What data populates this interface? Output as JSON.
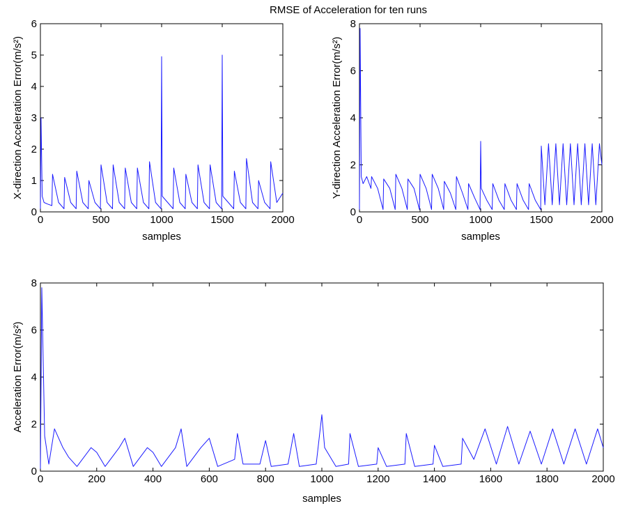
{
  "figure": {
    "title": "RMSE of Acceleration for ten runs"
  },
  "colors": {
    "trace": "#1a1aff",
    "axis": "#000000"
  },
  "chart_data": [
    {
      "id": "x_error",
      "type": "line",
      "xlabel": "samples",
      "ylabel": "X-direction Acceleration Error(m/s²)",
      "xlim": [
        0,
        2000
      ],
      "ylim": [
        0,
        6
      ],
      "xticks": [
        0,
        500,
        1000,
        1500,
        2000
      ],
      "yticks": [
        0,
        1,
        2,
        3,
        4,
        5,
        6
      ],
      "x": [
        0,
        5,
        15,
        30,
        60,
        95,
        100,
        150,
        195,
        200,
        250,
        295,
        300,
        350,
        395,
        400,
        450,
        495,
        500,
        550,
        595,
        600,
        650,
        695,
        700,
        750,
        795,
        800,
        850,
        895,
        900,
        950,
        995,
        1000,
        1005,
        1050,
        1095,
        1100,
        1150,
        1195,
        1200,
        1250,
        1295,
        1300,
        1350,
        1395,
        1400,
        1450,
        1495,
        1500,
        1505,
        1550,
        1595,
        1600,
        1650,
        1695,
        1700,
        1750,
        1795,
        1800,
        1850,
        1895,
        1900,
        1950,
        2000
      ],
      "y": [
        0.1,
        3.0,
        0.5,
        0.3,
        0.25,
        0.2,
        1.2,
        0.3,
        0.1,
        1.1,
        0.3,
        0.1,
        1.3,
        0.3,
        0.1,
        1.0,
        0.3,
        0.1,
        1.5,
        0.3,
        0.1,
        1.5,
        0.3,
        0.1,
        1.4,
        0.3,
        0.1,
        1.4,
        0.3,
        0.1,
        1.6,
        0.3,
        0.1,
        4.95,
        0.5,
        0.3,
        0.1,
        1.4,
        0.3,
        0.1,
        1.2,
        0.3,
        0.1,
        1.5,
        0.3,
        0.1,
        1.5,
        0.3,
        0.1,
        5.0,
        0.5,
        0.3,
        0.1,
        1.3,
        0.3,
        0.1,
        1.7,
        0.3,
        0.1,
        1.0,
        0.3,
        0.1,
        1.6,
        0.3,
        0.6
      ]
    },
    {
      "id": "y_error",
      "type": "line",
      "xlabel": "samples",
      "ylabel": "Y-direction Acceleration Error(m/s²)",
      "xlim": [
        0,
        2000
      ],
      "ylim": [
        0,
        8
      ],
      "xticks": [
        0,
        500,
        1000,
        1500,
        2000
      ],
      "yticks": [
        0,
        2,
        4,
        6,
        8
      ],
      "x": [
        0,
        5,
        15,
        30,
        60,
        95,
        100,
        150,
        195,
        200,
        250,
        295,
        300,
        350,
        395,
        400,
        450,
        495,
        500,
        550,
        595,
        600,
        650,
        695,
        700,
        750,
        795,
        800,
        850,
        895,
        900,
        950,
        995,
        1000,
        1005,
        1050,
        1095,
        1100,
        1150,
        1195,
        1200,
        1250,
        1295,
        1300,
        1350,
        1395,
        1400,
        1450,
        1495,
        1500,
        1530,
        1560,
        1590,
        1620,
        1650,
        1680,
        1710,
        1740,
        1770,
        1800,
        1830,
        1860,
        1890,
        1920,
        1950,
        1980,
        2000
      ],
      "y": [
        0.1,
        7.8,
        1.5,
        1.2,
        1.5,
        1.0,
        1.5,
        1.0,
        0.1,
        1.4,
        1.0,
        0.1,
        1.6,
        1.0,
        0.1,
        1.4,
        1.0,
        0.1,
        1.6,
        1.0,
        0.1,
        1.6,
        1.0,
        0.1,
        1.3,
        0.8,
        0.1,
        1.5,
        0.8,
        0.1,
        1.2,
        0.6,
        0.1,
        3.0,
        1.0,
        0.5,
        0.1,
        1.2,
        0.5,
        0.1,
        1.2,
        0.5,
        0.1,
        1.2,
        0.5,
        0.1,
        1.2,
        0.5,
        0.1,
        2.8,
        0.3,
        2.9,
        0.3,
        2.9,
        0.3,
        2.9,
        0.3,
        2.9,
        0.3,
        2.9,
        0.3,
        2.9,
        0.3,
        2.9,
        0.3,
        2.9,
        2.0
      ]
    },
    {
      "id": "total_error",
      "type": "line",
      "xlabel": "samples",
      "ylabel": "Acceleration Error(m/s²)",
      "xlim": [
        0,
        2000
      ],
      "ylim": [
        0,
        8
      ],
      "xticks": [
        0,
        200,
        400,
        600,
        800,
        1000,
        1200,
        1400,
        1600,
        1800,
        2000
      ],
      "yticks": [
        0,
        2,
        4,
        6,
        8
      ],
      "x": [
        0,
        5,
        15,
        30,
        50,
        80,
        100,
        130,
        180,
        200,
        230,
        280,
        300,
        330,
        380,
        400,
        430,
        480,
        500,
        520,
        570,
        600,
        630,
        690,
        700,
        720,
        780,
        800,
        820,
        880,
        900,
        920,
        980,
        1000,
        1010,
        1050,
        1095,
        1100,
        1130,
        1195,
        1200,
        1230,
        1295,
        1300,
        1330,
        1395,
        1400,
        1430,
        1495,
        1500,
        1540,
        1580,
        1620,
        1660,
        1700,
        1740,
        1780,
        1820,
        1860,
        1900,
        1940,
        1980,
        2000
      ],
      "y": [
        0.1,
        7.8,
        1.5,
        0.3,
        1.8,
        1.0,
        0.6,
        0.2,
        1.0,
        0.8,
        0.2,
        1.0,
        1.4,
        0.2,
        1.0,
        0.8,
        0.2,
        1.0,
        1.8,
        0.2,
        1.0,
        1.4,
        0.2,
        0.5,
        1.6,
        0.3,
        0.3,
        1.3,
        0.2,
        0.3,
        1.6,
        0.2,
        0.3,
        2.4,
        1.0,
        0.2,
        0.3,
        1.6,
        0.2,
        0.3,
        1.0,
        0.2,
        0.3,
        1.6,
        0.2,
        0.3,
        1.1,
        0.2,
        0.3,
        1.4,
        0.5,
        1.8,
        0.3,
        1.9,
        0.3,
        1.7,
        0.3,
        1.8,
        0.3,
        1.8,
        0.3,
        1.8,
        1.0
      ]
    }
  ]
}
